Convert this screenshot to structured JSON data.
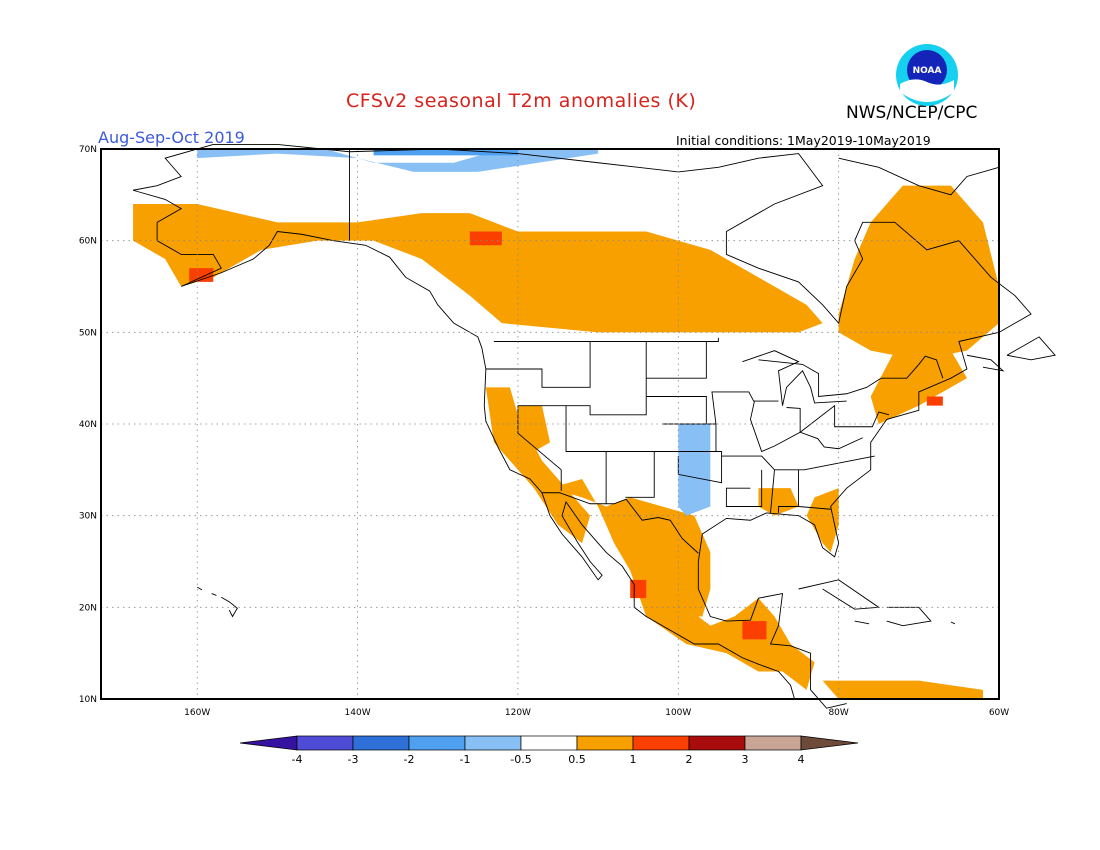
{
  "title": "CFSv2 seasonal T2m anomalies (K)",
  "agency": "NWS/NCEP/CPC",
  "logo_text": "NOAA",
  "season": "Aug-Sep-Oct 2019",
  "initial_conditions": "Initial conditions: 1May2019-10May2019",
  "colors": {
    "title": "#d8221c",
    "season": "#3c5adb",
    "cat_neg4": "#3512a0",
    "cat_neg3": "#4e4cd6",
    "cat_neg2": "#2f6fd8",
    "cat_neg1": "#4fa0f0",
    "cat_neg05": "#88c0f5",
    "cat_pos05": "#f8a000",
    "cat_pos1": "#fa3f00",
    "cat_pos2": "#a80c0c",
    "cat_pos3": "#c8a594",
    "cat_pos4": "#6e4a3a"
  },
  "axes": {
    "lon_range": [
      -172,
      -60
    ],
    "lat_range": [
      10,
      70
    ],
    "lon_ticks": [
      "160W",
      "140W",
      "120W",
      "100W",
      "80W",
      "60W"
    ],
    "lat_ticks": [
      "70N",
      "60N",
      "50N",
      "40N",
      "30N",
      "20N",
      "10N"
    ],
    "gridlines": "dotted"
  },
  "colorbar": {
    "labels": [
      "-4",
      "-3",
      "-2",
      "-1",
      "-0.5",
      "0.5",
      "1",
      "2",
      "3",
      "4"
    ]
  }
}
